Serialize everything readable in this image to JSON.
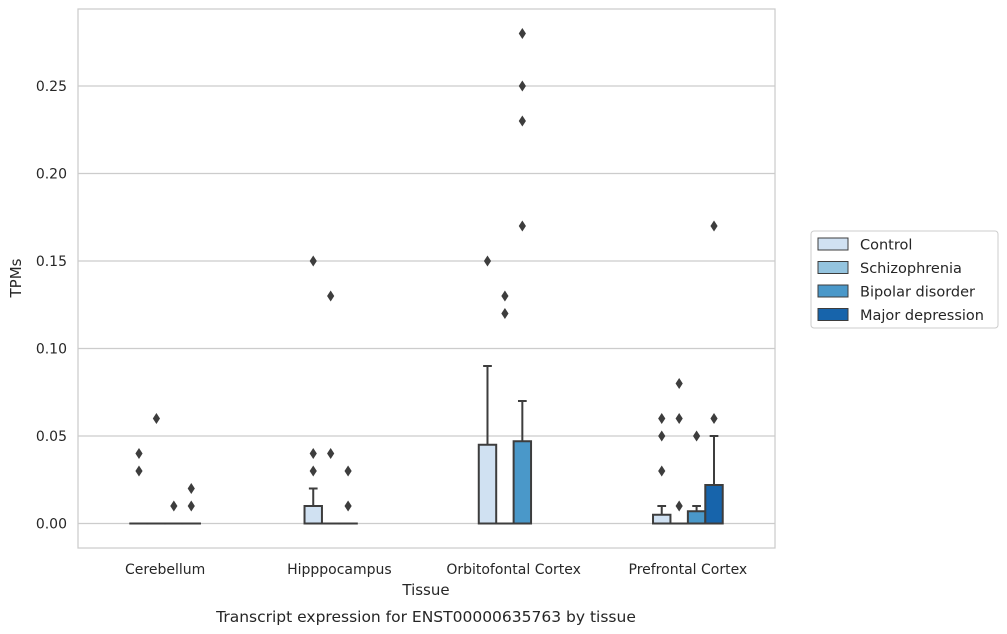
{
  "chart_data": {
    "type": "box",
    "caption": "Transcript expression for ENST00000635763 by tissue",
    "xlabel": "Tissue",
    "ylabel": "TPMs",
    "ylim": [
      -0.014,
      0.294
    ],
    "yticks": [
      "0.00",
      "0.05",
      "0.10",
      "0.15",
      "0.20",
      "0.25"
    ],
    "ytick_values": [
      0,
      0.05,
      0.1,
      0.15,
      0.2,
      0.25
    ],
    "grid": "horizontal",
    "legend_placement": "right",
    "categories": [
      "Cerebellum",
      "Hipppocampus",
      "Orbitofontal Cortex",
      "Prefrontal Cortex"
    ],
    "series": [
      {
        "name": "Control",
        "color": "#d0e1f2",
        "boxes": [
          {
            "q1": 0,
            "median": 0,
            "q3": 0,
            "whisker_low": 0,
            "whisker_high": 0,
            "outliers": [
              0.03,
              0.04
            ]
          },
          {
            "q1": 0,
            "median": 0,
            "q3": 0.01,
            "whisker_low": 0,
            "whisker_high": 0.02,
            "outliers": [
              0.03,
              0.04,
              0.15
            ]
          },
          {
            "q1": 0,
            "median": 0,
            "q3": 0.045,
            "whisker_low": 0,
            "whisker_high": 0.09,
            "outliers": [
              0.15
            ]
          },
          {
            "q1": 0,
            "median": 0,
            "q3": 0.005,
            "whisker_low": 0,
            "whisker_high": 0.01,
            "outliers": [
              0.03,
              0.05,
              0.06
            ]
          }
        ]
      },
      {
        "name": "Schizophrenia",
        "color": "#94c4df",
        "boxes": [
          {
            "q1": 0,
            "median": 0,
            "q3": 0,
            "whisker_low": 0,
            "whisker_high": 0,
            "outliers": [
              0.06
            ]
          },
          {
            "q1": 0,
            "median": 0,
            "q3": 0,
            "whisker_low": 0,
            "whisker_high": 0,
            "outliers": [
              0.04,
              0.13
            ]
          },
          {
            "q1": 0,
            "median": 0,
            "q3": 0,
            "whisker_low": 0,
            "whisker_high": 0,
            "outliers": [
              0.12,
              0.13
            ]
          },
          {
            "q1": 0,
            "median": 0,
            "q3": 0,
            "whisker_low": 0,
            "whisker_high": 0,
            "outliers": [
              0.01,
              0.06,
              0.08
            ]
          }
        ]
      },
      {
        "name": "Bipolar disorder",
        "color": "#4a98c9",
        "boxes": [
          {
            "q1": 0,
            "median": 0,
            "q3": 0,
            "whisker_low": 0,
            "whisker_high": 0,
            "outliers": [
              0.01
            ]
          },
          {
            "q1": 0,
            "median": 0,
            "q3": 0,
            "whisker_low": 0,
            "whisker_high": 0,
            "outliers": [
              0.01,
              0.03
            ]
          },
          {
            "q1": 0,
            "median": 0,
            "q3": 0.047,
            "whisker_low": 0,
            "whisker_high": 0.07,
            "outliers": [
              0.17,
              0.23,
              0.25,
              0.28
            ]
          },
          {
            "q1": 0,
            "median": 0,
            "q3": 0.007,
            "whisker_low": 0,
            "whisker_high": 0.01,
            "outliers": [
              0.05
            ]
          }
        ]
      },
      {
        "name": "Major depression",
        "color": "#1764ab",
        "boxes": [
          {
            "q1": 0,
            "median": 0,
            "q3": 0,
            "whisker_low": 0,
            "whisker_high": 0,
            "outliers": [
              0.01,
              0.02
            ]
          },
          null,
          null,
          {
            "q1": 0,
            "median": 0,
            "q3": 0.022,
            "whisker_low": 0,
            "whisker_high": 0.05,
            "outliers": [
              0.06,
              0.17
            ]
          }
        ]
      }
    ]
  }
}
